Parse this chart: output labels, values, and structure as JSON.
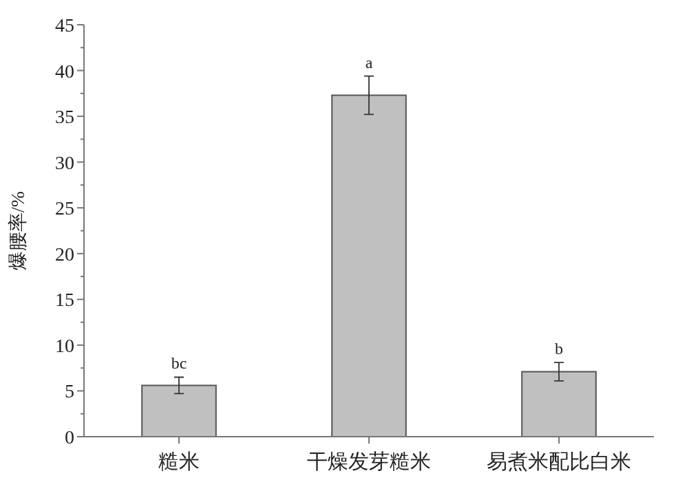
{
  "chart_data": {
    "type": "bar",
    "ylabel": "爆腰率/%",
    "categories": [
      "糙米",
      "干燥发芽糙米",
      "易煮米配比白米"
    ],
    "series": [
      {
        "color": "#c0c0c0",
        "values": [
          5.6,
          37.3,
          7.1
        ],
        "errors": [
          0.9,
          2.1,
          1.0
        ]
      }
    ],
    "ylim": [
      0,
      45
    ],
    "yticks": [
      0,
      {
        "value": 2.5,
        "label": null
      },
      5,
      {
        "value": 7.5,
        "label": null
      },
      10,
      {
        "value": 12.5,
        "label": null
      },
      15,
      {
        "value": 17.5,
        "label": null
      },
      20,
      {
        "value": 22.5,
        "label": null
      },
      25,
      {
        "value": 27.5,
        "label": null
      },
      30,
      {
        "value": 32.5,
        "label": null
      },
      35,
      {
        "value": 37.5,
        "label": null
      },
      40,
      {
        "value": 42.5,
        "label": null
      },
      45
    ],
    "annotations": [
      "bc",
      "a",
      "b"
    ],
    "grid": false
  }
}
